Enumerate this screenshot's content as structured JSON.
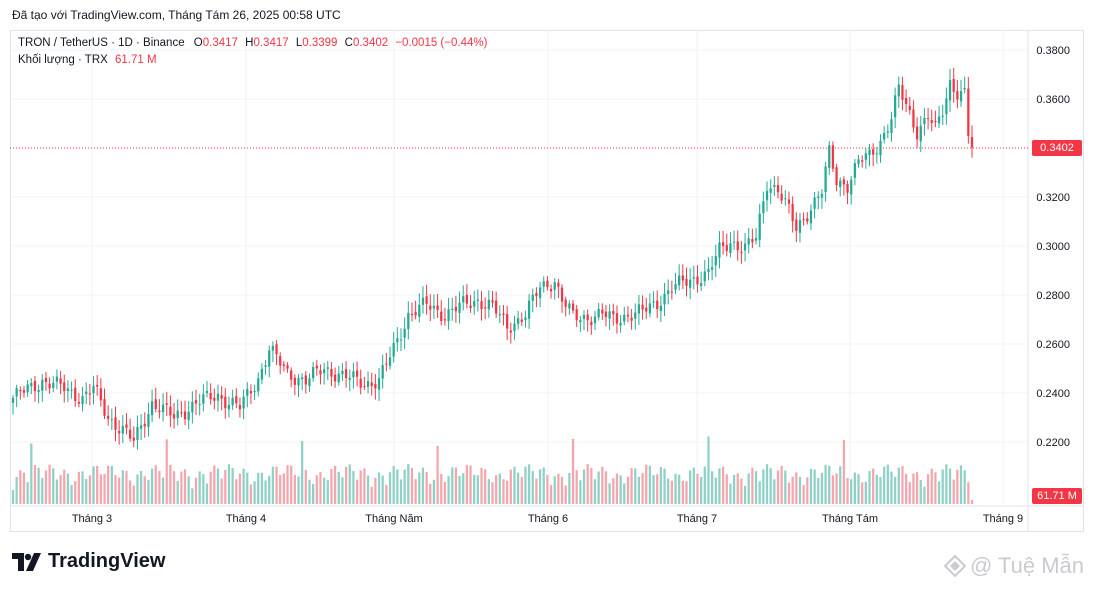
{
  "header": {
    "created_text": "Đã tạo với TradingView.com, Tháng Tám 26, 2025 00:58 UTC"
  },
  "legend": {
    "symbol": "TRON / TetherUS · 1D · Binance",
    "o_label": "O",
    "o_value": "0.3417",
    "h_label": "H",
    "h_value": "0.3417",
    "l_label": "L",
    "l_value": "0.3399",
    "c_label": "C",
    "c_value": "0.3402",
    "change": "−0.0015 (−0.44%)",
    "volume_label": "Khối lượng · TRX",
    "volume_value": "61.71 M"
  },
  "price_tag": "0.3402",
  "volume_tag": "61.71 M",
  "footer": {
    "brand": "TradingView",
    "watermark": "@ Tuệ Mẫn"
  },
  "colors": {
    "up": "#22ab94",
    "down": "#f23645",
    "up_vol": "#8fd1c6",
    "down_vol": "#f5a6ad",
    "grid": "#f0f3fa"
  },
  "chart_data": {
    "type": "candlestick",
    "title": "TRON / TetherUS · 1D · Binance",
    "ylim": [
      0.2,
      0.39
    ],
    "y_ticks": [
      "0.3800",
      "0.3600",
      "0.3400",
      "0.3200",
      "0.3000",
      "0.2800",
      "0.2600",
      "0.2400",
      "0.2200"
    ],
    "x_ticks": [
      "Tháng 3",
      "Tháng 4",
      "Tháng Năm",
      "Tháng 6",
      "Tháng 7",
      "Tháng Tám",
      "Tháng 9"
    ],
    "grid": true,
    "close_anchors": [
      [
        0,
        0.238
      ],
      [
        8,
        0.245
      ],
      [
        14,
        0.242
      ],
      [
        19,
        0.238
      ],
      [
        22,
        0.242
      ],
      [
        26,
        0.23
      ],
      [
        30,
        0.225
      ],
      [
        33,
        0.22
      ],
      [
        38,
        0.236
      ],
      [
        44,
        0.23
      ],
      [
        50,
        0.236
      ],
      [
        56,
        0.239
      ],
      [
        62,
        0.234
      ],
      [
        67,
        0.246
      ],
      [
        70,
        0.258
      ],
      [
        75,
        0.248
      ],
      [
        80,
        0.245
      ],
      [
        85,
        0.25
      ],
      [
        90,
        0.247
      ],
      [
        96,
        0.244
      ],
      [
        100,
        0.245
      ],
      [
        104,
        0.258
      ],
      [
        108,
        0.272
      ],
      [
        113,
        0.276
      ],
      [
        118,
        0.272
      ],
      [
        123,
        0.276
      ],
      [
        127,
        0.278
      ],
      [
        131,
        0.275
      ],
      [
        135,
        0.267
      ],
      [
        140,
        0.272
      ],
      [
        144,
        0.283
      ],
      [
        148,
        0.286
      ],
      [
        150,
        0.278
      ],
      [
        153,
        0.271
      ],
      [
        157,
        0.271
      ],
      [
        161,
        0.272
      ],
      [
        164,
        0.27
      ],
      [
        168,
        0.272
      ],
      [
        172,
        0.273
      ],
      [
        176,
        0.277
      ],
      [
        180,
        0.283
      ],
      [
        185,
        0.286
      ],
      [
        190,
        0.289
      ],
      [
        193,
        0.298
      ],
      [
        196,
        0.302
      ],
      [
        200,
        0.299
      ],
      [
        203,
        0.303
      ],
      [
        206,
        0.326
      ],
      [
        209,
        0.323
      ],
      [
        212,
        0.314
      ],
      [
        214,
        0.307
      ],
      [
        218,
        0.316
      ],
      [
        221,
        0.322
      ],
      [
        223,
        0.338
      ],
      [
        225,
        0.327
      ],
      [
        228,
        0.325
      ],
      [
        231,
        0.334
      ],
      [
        234,
        0.337
      ],
      [
        237,
        0.343
      ],
      [
        240,
        0.352
      ],
      [
        242,
        0.364
      ],
      [
        245,
        0.354
      ],
      [
        247,
        0.347
      ],
      [
        250,
        0.353
      ],
      [
        252,
        0.347
      ],
      [
        254,
        0.355
      ],
      [
        256,
        0.367
      ],
      [
        258,
        0.363
      ],
      [
        260,
        0.362
      ],
      [
        261,
        0.345
      ],
      [
        262,
        0.3402
      ]
    ]
  }
}
